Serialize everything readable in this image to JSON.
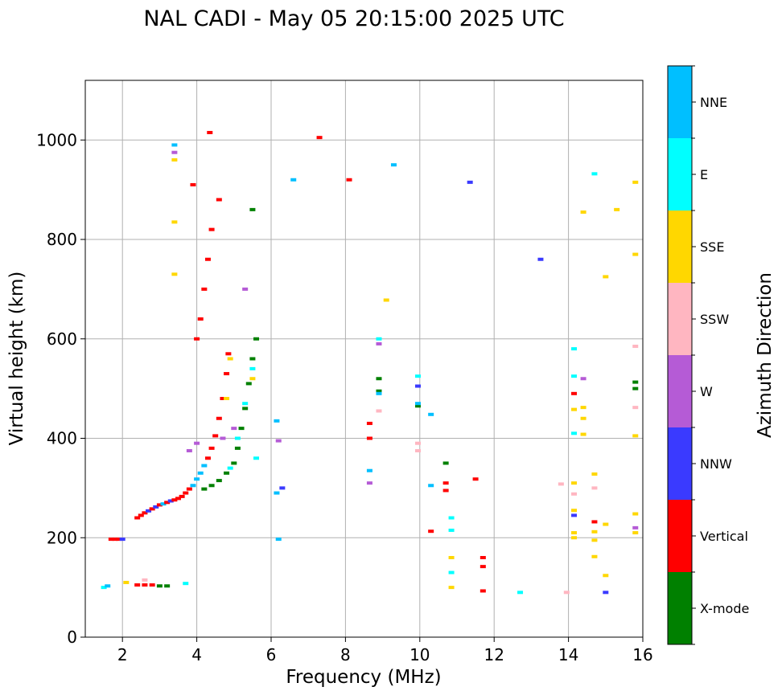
{
  "chart_data": {
    "type": "scatter",
    "subtype": "ionogram",
    "title": "NAL CADI - May 05 20:15:00 2025 UTC",
    "xlabel": "Frequency (MHz)",
    "ylabel": "Virtual height (km)",
    "xlim": [
      1.0,
      16.0
    ],
    "ylim": [
      0,
      1120
    ],
    "xticks": [
      2,
      4,
      6,
      8,
      10,
      12,
      14,
      16
    ],
    "yticks": [
      0,
      200,
      400,
      600,
      800,
      1000
    ],
    "grid": true,
    "colorbar": {
      "label": "Azimuth Direction",
      "categories": [
        {
          "name": "X-mode",
          "color": "#008000"
        },
        {
          "name": "Vertical",
          "color": "#ff0000"
        },
        {
          "name": "NNW",
          "color": "#3a3aff"
        },
        {
          "name": "W",
          "color": "#b55bd6"
        },
        {
          "name": "SSW",
          "color": "#ffb6c1"
        },
        {
          "name": "SSE",
          "color": "#ffd700"
        },
        {
          "name": "E",
          "color": "#00ffff"
        },
        {
          "name": "NNE",
          "color": "#00bfff"
        }
      ]
    },
    "echoes": [
      {
        "dir": "Vertical",
        "f": 1.7,
        "h": 197
      },
      {
        "dir": "Vertical",
        "f": 1.8,
        "h": 197
      },
      {
        "dir": "Vertical",
        "f": 1.9,
        "h": 197
      },
      {
        "dir": "NNW",
        "f": 2.0,
        "h": 197
      },
      {
        "dir": "Vertical",
        "f": 2.4,
        "h": 240
      },
      {
        "dir": "Vertical",
        "f": 2.5,
        "h": 245
      },
      {
        "dir": "Vertical",
        "f": 2.6,
        "h": 250
      },
      {
        "dir": "NNW",
        "f": 2.7,
        "h": 254
      },
      {
        "dir": "Vertical",
        "f": 2.8,
        "h": 258
      },
      {
        "dir": "NNW",
        "f": 2.9,
        "h": 262
      },
      {
        "dir": "Vertical",
        "f": 3.0,
        "h": 266
      },
      {
        "dir": "NNE",
        "f": 3.1,
        "h": 268
      },
      {
        "dir": "Vertical",
        "f": 3.2,
        "h": 271
      },
      {
        "dir": "NNW",
        "f": 3.3,
        "h": 274
      },
      {
        "dir": "Vertical",
        "f": 3.4,
        "h": 276
      },
      {
        "dir": "Vertical",
        "f": 3.5,
        "h": 279
      },
      {
        "dir": "Vertical",
        "f": 3.6,
        "h": 283
      },
      {
        "dir": "Vertical",
        "f": 3.7,
        "h": 290
      },
      {
        "dir": "Vertical",
        "f": 3.8,
        "h": 298
      },
      {
        "dir": "NNE",
        "f": 3.9,
        "h": 305
      },
      {
        "dir": "NNE",
        "f": 4.0,
        "h": 318
      },
      {
        "dir": "NNE",
        "f": 4.1,
        "h": 330
      },
      {
        "dir": "NNE",
        "f": 4.2,
        "h": 345
      },
      {
        "dir": "Vertical",
        "f": 4.3,
        "h": 360
      },
      {
        "dir": "Vertical",
        "f": 4.4,
        "h": 380
      },
      {
        "dir": "Vertical",
        "f": 4.5,
        "h": 405
      },
      {
        "dir": "Vertical",
        "f": 4.6,
        "h": 440
      },
      {
        "dir": "Vertical",
        "f": 4.7,
        "h": 480
      },
      {
        "dir": "Vertical",
        "f": 4.8,
        "h": 530
      },
      {
        "dir": "Vertical",
        "f": 4.85,
        "h": 570
      },
      {
        "dir": "Vertical",
        "f": 4.0,
        "h": 600
      },
      {
        "dir": "Vertical",
        "f": 4.1,
        "h": 640
      },
      {
        "dir": "Vertical",
        "f": 4.2,
        "h": 700
      },
      {
        "dir": "Vertical",
        "f": 4.3,
        "h": 760
      },
      {
        "dir": "Vertical",
        "f": 4.4,
        "h": 820
      },
      {
        "dir": "Vertical",
        "f": 4.6,
        "h": 880
      },
      {
        "dir": "Vertical",
        "f": 3.9,
        "h": 910
      },
      {
        "dir": "X-mode",
        "f": 4.2,
        "h": 298
      },
      {
        "dir": "X-mode",
        "f": 4.4,
        "h": 305
      },
      {
        "dir": "X-mode",
        "f": 4.6,
        "h": 315
      },
      {
        "dir": "X-mode",
        "f": 4.8,
        "h": 330
      },
      {
        "dir": "X-mode",
        "f": 5.0,
        "h": 350
      },
      {
        "dir": "X-mode",
        "f": 5.1,
        "h": 380
      },
      {
        "dir": "X-mode",
        "f": 5.2,
        "h": 420
      },
      {
        "dir": "X-mode",
        "f": 5.3,
        "h": 460
      },
      {
        "dir": "X-mode",
        "f": 5.4,
        "h": 510
      },
      {
        "dir": "X-mode",
        "f": 5.5,
        "h": 560
      },
      {
        "dir": "X-mode",
        "f": 5.6,
        "h": 600
      },
      {
        "dir": "X-mode",
        "f": 5.5,
        "h": 860
      },
      {
        "dir": "E",
        "f": 4.9,
        "h": 340
      },
      {
        "dir": "E",
        "f": 5.1,
        "h": 400
      },
      {
        "dir": "E",
        "f": 5.3,
        "h": 470
      },
      {
        "dir": "E",
        "f": 5.5,
        "h": 540
      },
      {
        "dir": "E",
        "f": 5.6,
        "h": 360
      },
      {
        "dir": "W",
        "f": 3.8,
        "h": 375
      },
      {
        "dir": "W",
        "f": 4.0,
        "h": 390
      },
      {
        "dir": "W",
        "f": 4.7,
        "h": 400
      },
      {
        "dir": "W",
        "f": 5.0,
        "h": 420
      },
      {
        "dir": "W",
        "f": 5.3,
        "h": 700
      },
      {
        "dir": "SSE",
        "f": 5.5,
        "h": 520
      },
      {
        "dir": "SSE",
        "f": 4.9,
        "h": 560
      },
      {
        "dir": "SSE",
        "f": 4.8,
        "h": 480
      },
      {
        "dir": "X-mode",
        "f": 3.0,
        "h": 103
      },
      {
        "dir": "X-mode",
        "f": 3.2,
        "h": 103
      },
      {
        "dir": "Vertical",
        "f": 2.4,
        "h": 105
      },
      {
        "dir": "Vertical",
        "f": 2.6,
        "h": 105
      },
      {
        "dir": "Vertical",
        "f": 2.8,
        "h": 105
      },
      {
        "dir": "E",
        "f": 1.5,
        "h": 100
      },
      {
        "dir": "NNE",
        "f": 1.6,
        "h": 103
      },
      {
        "dir": "SSE",
        "f": 2.1,
        "h": 110
      },
      {
        "dir": "SSW",
        "f": 2.6,
        "h": 115
      },
      {
        "dir": "E",
        "f": 3.7,
        "h": 108
      },
      {
        "dir": "SSE",
        "f": 3.4,
        "h": 730
      },
      {
        "dir": "SSE",
        "f": 3.4,
        "h": 835
      },
      {
        "dir": "W",
        "f": 3.4,
        "h": 975
      },
      {
        "dir": "SSE",
        "f": 3.4,
        "h": 960
      },
      {
        "dir": "NNE",
        "f": 3.4,
        "h": 990
      },
      {
        "dir": "Vertical",
        "f": 4.35,
        "h": 1015
      },
      {
        "dir": "NNE",
        "f": 6.15,
        "h": 435
      },
      {
        "dir": "W",
        "f": 6.2,
        "h": 395
      },
      {
        "dir": "NNW",
        "f": 6.3,
        "h": 300
      },
      {
        "dir": "NNE",
        "f": 6.15,
        "h": 290
      },
      {
        "dir": "NNE",
        "f": 6.2,
        "h": 197
      },
      {
        "dir": "NNE",
        "f": 6.6,
        "h": 920
      },
      {
        "dir": "Vertical",
        "f": 7.3,
        "h": 1005
      },
      {
        "dir": "Vertical",
        "f": 8.1,
        "h": 920
      },
      {
        "dir": "Vertical",
        "f": 8.65,
        "h": 430
      },
      {
        "dir": "Vertical",
        "f": 8.65,
        "h": 400
      },
      {
        "dir": "X-mode",
        "f": 8.9,
        "h": 520
      },
      {
        "dir": "X-mode",
        "f": 8.9,
        "h": 495
      },
      {
        "dir": "NNE",
        "f": 8.9,
        "h": 490
      },
      {
        "dir": "E",
        "f": 8.9,
        "h": 600
      },
      {
        "dir": "W",
        "f": 8.9,
        "h": 590
      },
      {
        "dir": "SSW",
        "f": 8.9,
        "h": 455
      },
      {
        "dir": "NNE",
        "f": 8.65,
        "h": 335
      },
      {
        "dir": "W",
        "f": 8.65,
        "h": 310
      },
      {
        "dir": "SSE",
        "f": 9.1,
        "h": 678
      },
      {
        "dir": "NNE",
        "f": 9.3,
        "h": 950
      },
      {
        "dir": "E",
        "f": 9.95,
        "h": 525
      },
      {
        "dir": "NNW",
        "f": 9.95,
        "h": 505
      },
      {
        "dir": "X-mode",
        "f": 9.95,
        "h": 465
      },
      {
        "dir": "NNE",
        "f": 9.95,
        "h": 470
      },
      {
        "dir": "SSW",
        "f": 9.95,
        "h": 390
      },
      {
        "dir": "SSW",
        "f": 9.95,
        "h": 375
      },
      {
        "dir": "NNE",
        "f": 10.3,
        "h": 448
      },
      {
        "dir": "NNE",
        "f": 10.3,
        "h": 305
      },
      {
        "dir": "Vertical",
        "f": 10.3,
        "h": 213
      },
      {
        "dir": "X-mode",
        "f": 10.7,
        "h": 350
      },
      {
        "dir": "Vertical",
        "f": 10.7,
        "h": 310
      },
      {
        "dir": "Vertical",
        "f": 10.7,
        "h": 295
      },
      {
        "dir": "E",
        "f": 10.85,
        "h": 240
      },
      {
        "dir": "E",
        "f": 10.85,
        "h": 215
      },
      {
        "dir": "SSE",
        "f": 10.85,
        "h": 160
      },
      {
        "dir": "E",
        "f": 10.85,
        "h": 130
      },
      {
        "dir": "SSE",
        "f": 10.85,
        "h": 100
      },
      {
        "dir": "Vertical",
        "f": 11.7,
        "h": 160
      },
      {
        "dir": "Vertical",
        "f": 11.7,
        "h": 142
      },
      {
        "dir": "Vertical",
        "f": 11.7,
        "h": 93
      },
      {
        "dir": "Vertical",
        "f": 11.5,
        "h": 318
      },
      {
        "dir": "NNW",
        "f": 11.35,
        "h": 915
      },
      {
        "dir": "E",
        "f": 12.7,
        "h": 90
      },
      {
        "dir": "NNW",
        "f": 13.25,
        "h": 760
      },
      {
        "dir": "SSW",
        "f": 13.8,
        "h": 308
      },
      {
        "dir": "E",
        "f": 14.15,
        "h": 580
      },
      {
        "dir": "E",
        "f": 14.15,
        "h": 525
      },
      {
        "dir": "Vertical",
        "f": 14.15,
        "h": 490
      },
      {
        "dir": "SSE",
        "f": 14.15,
        "h": 458
      },
      {
        "dir": "E",
        "f": 14.15,
        "h": 410
      },
      {
        "dir": "SSE",
        "f": 14.15,
        "h": 310
      },
      {
        "dir": "SSW",
        "f": 14.15,
        "h": 288
      },
      {
        "dir": "SSE",
        "f": 14.15,
        "h": 255
      },
      {
        "dir": "NNW",
        "f": 14.15,
        "h": 245
      },
      {
        "dir": "SSE",
        "f": 14.15,
        "h": 210
      },
      {
        "dir": "SSE",
        "f": 14.15,
        "h": 200
      },
      {
        "dir": "SSW",
        "f": 13.95,
        "h": 90
      },
      {
        "dir": "SSE",
        "f": 14.4,
        "h": 855
      },
      {
        "dir": "W",
        "f": 14.4,
        "h": 520
      },
      {
        "dir": "SSE",
        "f": 14.4,
        "h": 462
      },
      {
        "dir": "SSE",
        "f": 14.4,
        "h": 440
      },
      {
        "dir": "SSE",
        "f": 14.4,
        "h": 408
      },
      {
        "dir": "E",
        "f": 14.7,
        "h": 932
      },
      {
        "dir": "SSE",
        "f": 14.7,
        "h": 328
      },
      {
        "dir": "SSW",
        "f": 14.7,
        "h": 300
      },
      {
        "dir": "Vertical",
        "f": 14.7,
        "h": 232
      },
      {
        "dir": "SSE",
        "f": 14.7,
        "h": 212
      },
      {
        "dir": "SSE",
        "f": 14.7,
        "h": 195
      },
      {
        "dir": "SSE",
        "f": 14.7,
        "h": 162
      },
      {
        "dir": "SSE",
        "f": 15.0,
        "h": 725
      },
      {
        "dir": "SSE",
        "f": 15.0,
        "h": 227
      },
      {
        "dir": "SSE",
        "f": 15.0,
        "h": 124
      },
      {
        "dir": "NNW",
        "f": 15.0,
        "h": 90
      },
      {
        "dir": "SSE",
        "f": 15.3,
        "h": 860
      },
      {
        "dir": "SSE",
        "f": 15.8,
        "h": 915
      },
      {
        "dir": "SSE",
        "f": 15.8,
        "h": 770
      },
      {
        "dir": "SSW",
        "f": 15.8,
        "h": 585
      },
      {
        "dir": "X-mode",
        "f": 15.8,
        "h": 513
      },
      {
        "dir": "X-mode",
        "f": 15.8,
        "h": 500
      },
      {
        "dir": "SSW",
        "f": 15.8,
        "h": 462
      },
      {
        "dir": "SSE",
        "f": 15.8,
        "h": 405
      },
      {
        "dir": "SSE",
        "f": 15.8,
        "h": 248
      },
      {
        "dir": "W",
        "f": 15.8,
        "h": 220
      },
      {
        "dir": "SSE",
        "f": 15.8,
        "h": 210
      }
    ]
  }
}
